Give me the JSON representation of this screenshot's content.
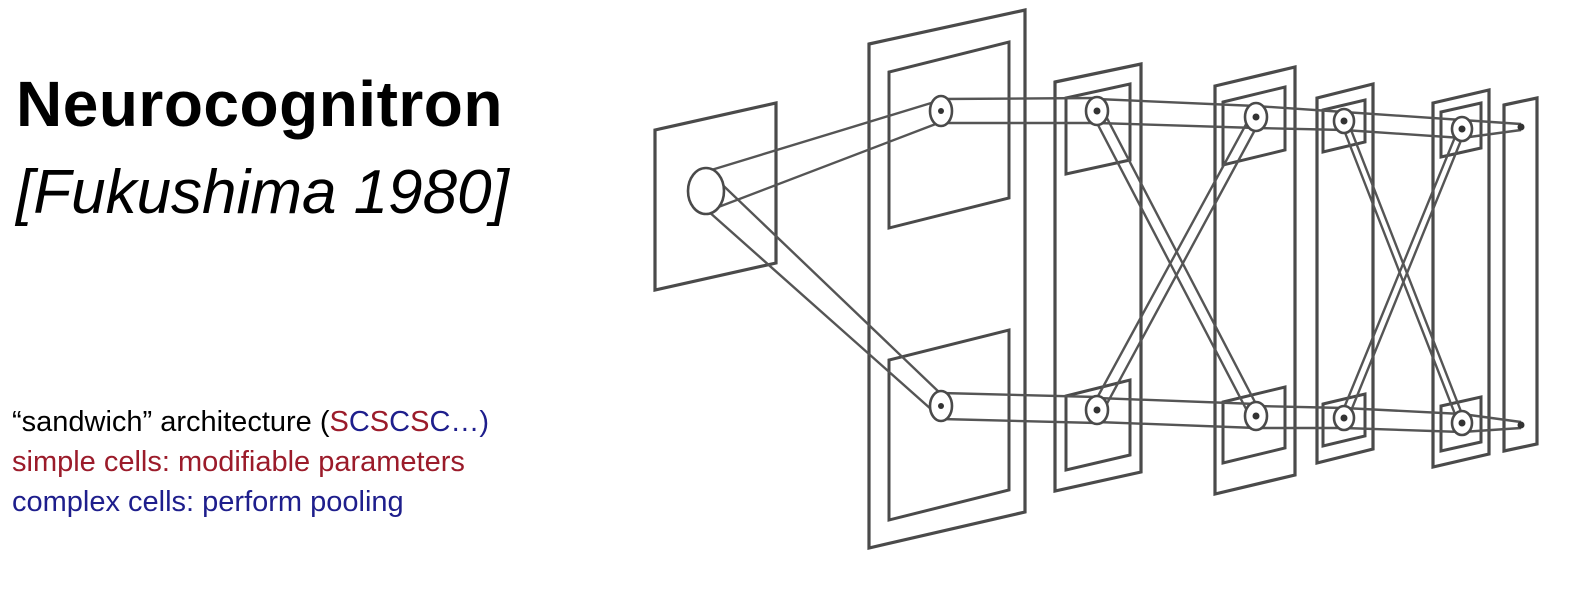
{
  "heading": {
    "title": "Neurocognitron",
    "citation": "[Fukushima 1980]"
  },
  "notes": {
    "line1_prefix": "“sandwich” architecture (",
    "sequence": [
      "S",
      "C",
      "S",
      "C",
      "S",
      "C"
    ],
    "line1_suffix": "…)",
    "simple_cells": "simple cells: modifiable parameters",
    "complex_cells": "complex cells: perform pooling"
  },
  "colors": {
    "simple": "#9b1b2a",
    "complex": "#1e1e8c",
    "diagram_stroke": "#4a4a4a"
  }
}
